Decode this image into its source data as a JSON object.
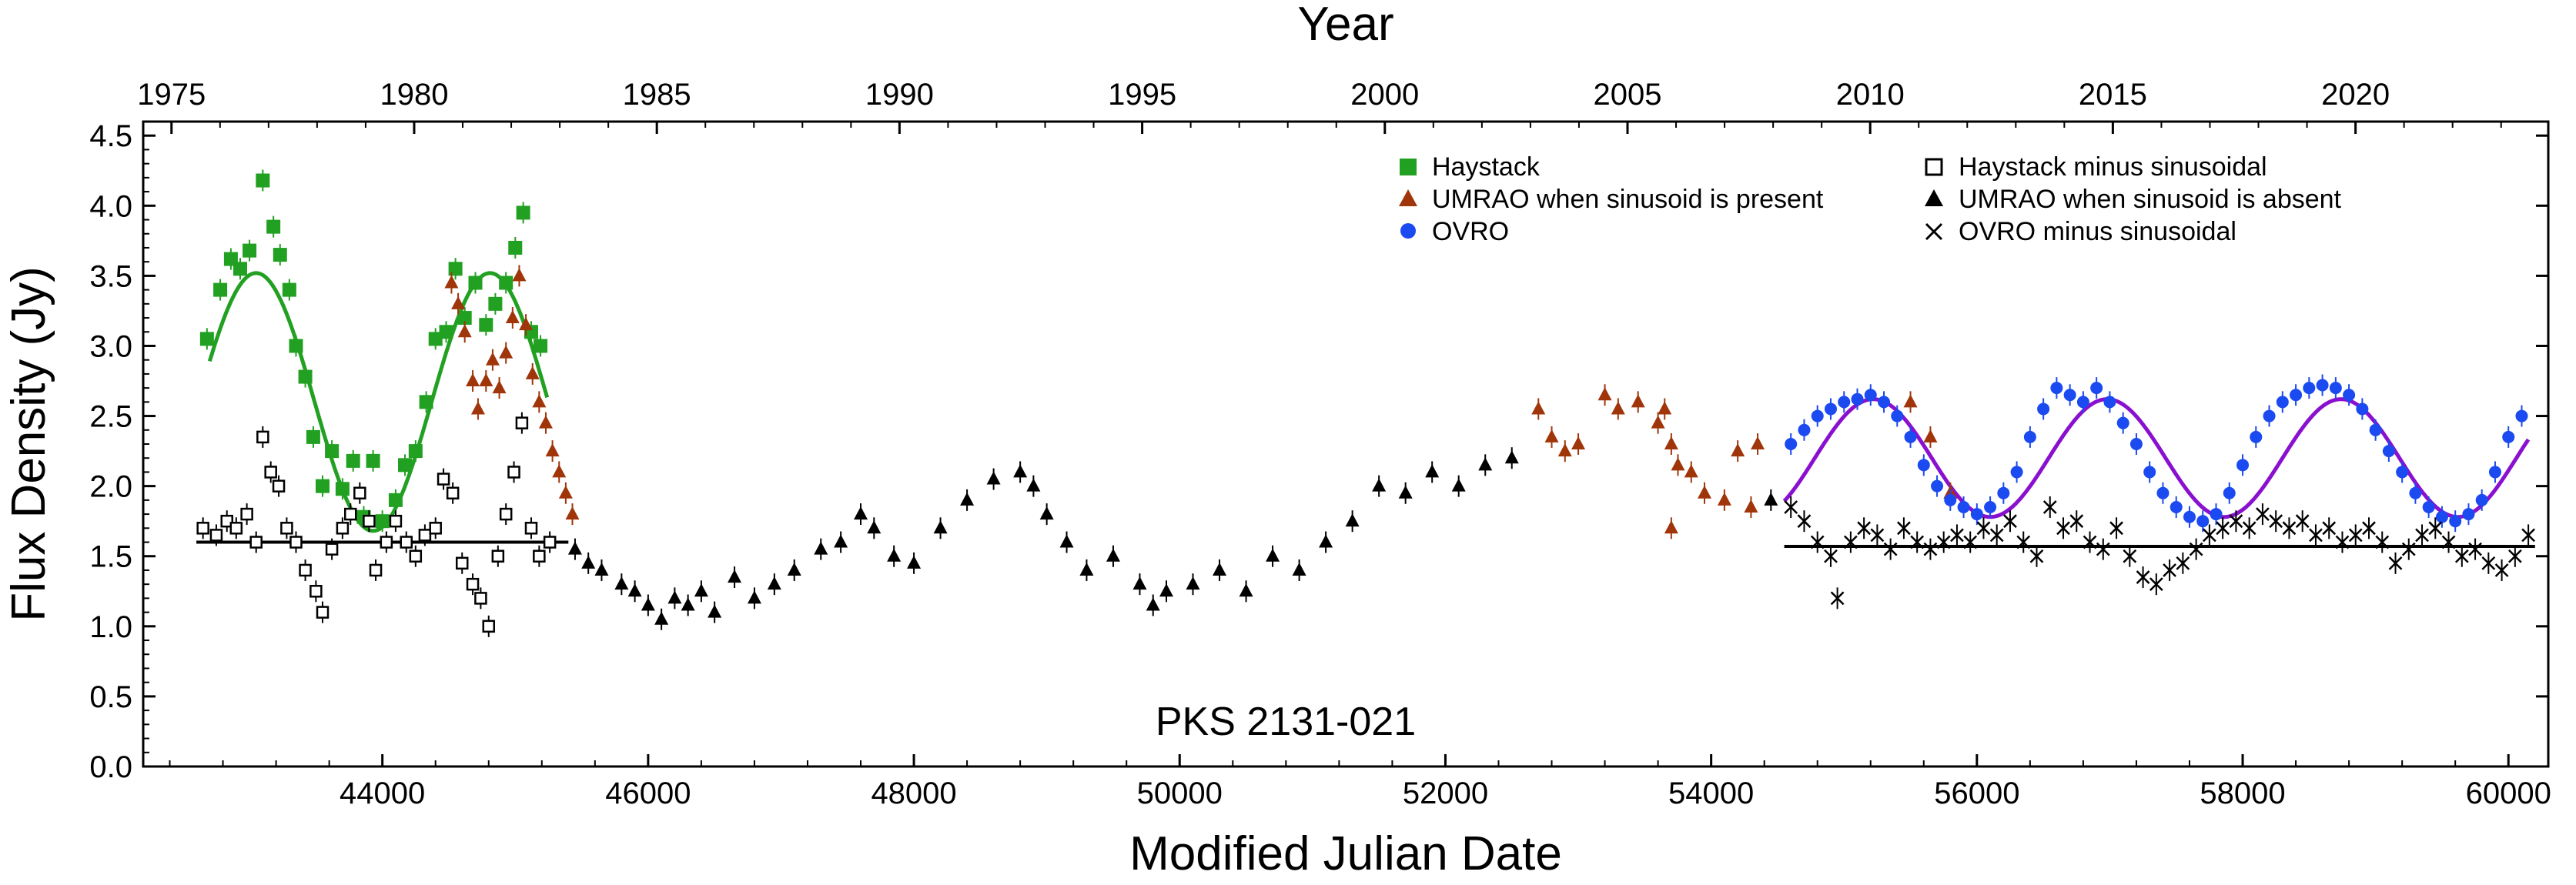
{
  "chart_data": {
    "type": "scatter",
    "title": "",
    "xlabel": "Modified Julian Date",
    "ylabel": "Flux Density (Jy)",
    "top_xlabel": "Year",
    "annotation": "PKS 2131-021",
    "xlim": [
      42200,
      60300
    ],
    "ylim": [
      0,
      4.6
    ],
    "x_ticks": [
      "44000",
      "46000",
      "48000",
      "50000",
      "52000",
      "54000",
      "56000",
      "58000",
      "60000"
    ],
    "y_ticks": [
      "0.0",
      "0.5",
      "1.0",
      "1.5",
      "2.0",
      "2.5",
      "3.0",
      "3.5",
      "4.0",
      "4.5"
    ],
    "top_ticks": [
      "1975",
      "1980",
      "1985",
      "1990",
      "1995",
      "2000",
      "2005",
      "2010",
      "2015",
      "2020"
    ],
    "legend": [
      "Haystack",
      "UMRAO when sinusoid is present",
      "OVRO",
      "Haystack minus sinusoidal",
      "UMRAO when sinusoid is absent",
      "OVRO minus sinusoidal"
    ],
    "colors": {
      "haystack": "#22a022",
      "umrao_present": "#a0350a",
      "ovro": "#1a4af0",
      "fit_haystack": "#22a022",
      "fit_ovro": "#8a10d0",
      "black": "#000000"
    },
    "series": [
      {
        "name": "Haystack",
        "marker": "square-filled",
        "points": [
          [
            42680,
            3.05
          ],
          [
            42780,
            3.4
          ],
          [
            42860,
            3.62
          ],
          [
            42930,
            3.55
          ],
          [
            43000,
            3.68
          ],
          [
            43100,
            4.18
          ],
          [
            43180,
            3.85
          ],
          [
            43230,
            3.65
          ],
          [
            43300,
            3.4
          ],
          [
            43350,
            3.0
          ],
          [
            43420,
            2.78
          ],
          [
            43480,
            2.35
          ],
          [
            43550,
            2.0
          ],
          [
            43620,
            2.25
          ],
          [
            43700,
            1.98
          ],
          [
            43780,
            2.18
          ],
          [
            43860,
            1.78
          ],
          [
            43930,
            2.18
          ],
          [
            44000,
            1.75
          ],
          [
            44100,
            1.9
          ],
          [
            44170,
            2.15
          ],
          [
            44250,
            2.25
          ],
          [
            44330,
            2.6
          ],
          [
            44400,
            3.05
          ],
          [
            44480,
            3.1
          ],
          [
            44550,
            3.55
          ],
          [
            44620,
            3.2
          ],
          [
            44700,
            3.45
          ],
          [
            44780,
            3.15
          ],
          [
            44850,
            3.3
          ],
          [
            44930,
            3.45
          ],
          [
            45000,
            3.7
          ],
          [
            45060,
            3.95
          ],
          [
            45120,
            3.1
          ],
          [
            45190,
            3.0
          ]
        ]
      },
      {
        "name": "UMRAO when sinusoid is present",
        "marker": "triangle-filled",
        "points": [
          [
            44520,
            3.45
          ],
          [
            44570,
            3.3
          ],
          [
            44620,
            3.1
          ],
          [
            44680,
            2.75
          ],
          [
            44720,
            2.55
          ],
          [
            44780,
            2.75
          ],
          [
            44830,
            2.9
          ],
          [
            44880,
            2.7
          ],
          [
            44930,
            2.95
          ],
          [
            44980,
            3.2
          ],
          [
            45030,
            3.5
          ],
          [
            45080,
            3.15
          ],
          [
            45130,
            2.8
          ],
          [
            45180,
            2.6
          ],
          [
            45230,
            2.45
          ],
          [
            45280,
            2.25
          ],
          [
            45330,
            2.1
          ],
          [
            45380,
            1.95
          ],
          [
            45430,
            1.8
          ],
          [
            52700,
            2.55
          ],
          [
            52800,
            2.35
          ],
          [
            52900,
            2.25
          ],
          [
            53000,
            2.3
          ],
          [
            53200,
            2.65
          ],
          [
            53300,
            2.55
          ],
          [
            53450,
            2.6
          ],
          [
            53600,
            2.45
          ],
          [
            53650,
            2.55
          ],
          [
            53700,
            2.3
          ],
          [
            53750,
            2.15
          ],
          [
            53700,
            1.7
          ],
          [
            53850,
            2.1
          ],
          [
            53950,
            1.95
          ],
          [
            54100,
            1.9
          ],
          [
            54200,
            2.25
          ],
          [
            54300,
            1.85
          ],
          [
            54350,
            2.3
          ],
          [
            55500,
            2.6
          ],
          [
            55650,
            2.35
          ],
          [
            55800,
            1.95
          ]
        ]
      },
      {
        "name": "OVRO",
        "marker": "circle-filled",
        "points": [
          [
            54600,
            2.3
          ],
          [
            54700,
            2.4
          ],
          [
            54800,
            2.5
          ],
          [
            54900,
            2.55
          ],
          [
            55000,
            2.6
          ],
          [
            55100,
            2.62
          ],
          [
            55200,
            2.65
          ],
          [
            55300,
            2.6
          ],
          [
            55400,
            2.5
          ],
          [
            55500,
            2.35
          ],
          [
            55600,
            2.15
          ],
          [
            55700,
            2.0
          ],
          [
            55800,
            1.9
          ],
          [
            55900,
            1.85
          ],
          [
            56000,
            1.8
          ],
          [
            56100,
            1.85
          ],
          [
            56200,
            1.95
          ],
          [
            56300,
            2.1
          ],
          [
            56400,
            2.35
          ],
          [
            56500,
            2.55
          ],
          [
            56600,
            2.7
          ],
          [
            56700,
            2.65
          ],
          [
            56800,
            2.6
          ],
          [
            56900,
            2.7
          ],
          [
            57000,
            2.6
          ],
          [
            57100,
            2.45
          ],
          [
            57200,
            2.3
          ],
          [
            57300,
            2.1
          ],
          [
            57400,
            1.95
          ],
          [
            57500,
            1.85
          ],
          [
            57600,
            1.78
          ],
          [
            57700,
            1.75
          ],
          [
            57800,
            1.8
          ],
          [
            57900,
            1.95
          ],
          [
            58000,
            2.15
          ],
          [
            58100,
            2.35
          ],
          [
            58200,
            2.5
          ],
          [
            58300,
            2.6
          ],
          [
            58400,
            2.65
          ],
          [
            58500,
            2.7
          ],
          [
            58600,
            2.72
          ],
          [
            58700,
            2.7
          ],
          [
            58800,
            2.65
          ],
          [
            58900,
            2.55
          ],
          [
            59000,
            2.4
          ],
          [
            59100,
            2.25
          ],
          [
            59200,
            2.1
          ],
          [
            59300,
            1.95
          ],
          [
            59400,
            1.85
          ],
          [
            59500,
            1.78
          ],
          [
            59600,
            1.75
          ],
          [
            59700,
            1.8
          ],
          [
            59800,
            1.9
          ],
          [
            59900,
            2.1
          ],
          [
            60000,
            2.35
          ],
          [
            60100,
            2.5
          ]
        ]
      },
      {
        "name": "Haystack minus sinusoidal",
        "marker": "square-open",
        "points": [
          [
            42650,
            1.7
          ],
          [
            42750,
            1.65
          ],
          [
            42830,
            1.75
          ],
          [
            42900,
            1.7
          ],
          [
            42980,
            1.8
          ],
          [
            43050,
            1.6
          ],
          [
            43100,
            2.35
          ],
          [
            43160,
            2.1
          ],
          [
            43220,
            2.0
          ],
          [
            43280,
            1.7
          ],
          [
            43350,
            1.6
          ],
          [
            43420,
            1.4
          ],
          [
            43500,
            1.25
          ],
          [
            43550,
            1.1
          ],
          [
            43620,
            1.55
          ],
          [
            43700,
            1.7
          ],
          [
            43760,
            1.8
          ],
          [
            43830,
            1.95
          ],
          [
            43900,
            1.75
          ],
          [
            43950,
            1.4
          ],
          [
            44030,
            1.6
          ],
          [
            44100,
            1.75
          ],
          [
            44180,
            1.6
          ],
          [
            44250,
            1.5
          ],
          [
            44320,
            1.65
          ],
          [
            44400,
            1.7
          ],
          [
            44460,
            2.05
          ],
          [
            44530,
            1.95
          ],
          [
            44600,
            1.45
          ],
          [
            44680,
            1.3
          ],
          [
            44740,
            1.2
          ],
          [
            44800,
            1.0
          ],
          [
            44870,
            1.5
          ],
          [
            44930,
            1.8
          ],
          [
            44990,
            2.1
          ],
          [
            45050,
            2.45
          ],
          [
            45120,
            1.7
          ],
          [
            45180,
            1.5
          ],
          [
            45260,
            1.6
          ]
        ]
      },
      {
        "name": "UMRAO when sinusoid is absent",
        "marker": "triangle-filled",
        "points": [
          [
            45450,
            1.55
          ],
          [
            45550,
            1.45
          ],
          [
            45650,
            1.4
          ],
          [
            45800,
            1.3
          ],
          [
            45900,
            1.25
          ],
          [
            46000,
            1.15
          ],
          [
            46100,
            1.05
          ],
          [
            46200,
            1.2
          ],
          [
            46300,
            1.15
          ],
          [
            46400,
            1.25
          ],
          [
            46500,
            1.1
          ],
          [
            46650,
            1.35
          ],
          [
            46800,
            1.2
          ],
          [
            46950,
            1.3
          ],
          [
            47100,
            1.4
          ],
          [
            47300,
            1.55
          ],
          [
            47450,
            1.6
          ],
          [
            47600,
            1.8
          ],
          [
            47700,
            1.7
          ],
          [
            47850,
            1.5
          ],
          [
            48000,
            1.45
          ],
          [
            48200,
            1.7
          ],
          [
            48400,
            1.9
          ],
          [
            48600,
            2.05
          ],
          [
            48800,
            2.1
          ],
          [
            48900,
            2.0
          ],
          [
            49000,
            1.8
          ],
          [
            49150,
            1.6
          ],
          [
            49300,
            1.4
          ],
          [
            49500,
            1.5
          ],
          [
            49700,
            1.3
          ],
          [
            49800,
            1.15
          ],
          [
            49900,
            1.25
          ],
          [
            50100,
            1.3
          ],
          [
            50300,
            1.4
          ],
          [
            50500,
            1.25
          ],
          [
            50700,
            1.5
          ],
          [
            50900,
            1.4
          ],
          [
            51100,
            1.6
          ],
          [
            51300,
            1.75
          ],
          [
            51500,
            2.0
          ],
          [
            51700,
            1.95
          ],
          [
            51900,
            2.1
          ],
          [
            52100,
            2.0
          ],
          [
            52300,
            2.15
          ],
          [
            52500,
            2.2
          ],
          [
            54450,
            1.9
          ]
        ]
      },
      {
        "name": "OVRO minus sinusoidal",
        "marker": "cross",
        "points": [
          [
            54600,
            1.85
          ],
          [
            54700,
            1.75
          ],
          [
            54800,
            1.6
          ],
          [
            54900,
            1.5
          ],
          [
            54950,
            1.2
          ],
          [
            55050,
            1.6
          ],
          [
            55150,
            1.7
          ],
          [
            55250,
            1.65
          ],
          [
            55350,
            1.55
          ],
          [
            55450,
            1.7
          ],
          [
            55550,
            1.6
          ],
          [
            55650,
            1.55
          ],
          [
            55750,
            1.6
          ],
          [
            55850,
            1.65
          ],
          [
            55950,
            1.6
          ],
          [
            56050,
            1.7
          ],
          [
            56150,
            1.65
          ],
          [
            56250,
            1.75
          ],
          [
            56350,
            1.6
          ],
          [
            56450,
            1.5
          ],
          [
            56550,
            1.85
          ],
          [
            56650,
            1.7
          ],
          [
            56750,
            1.75
          ],
          [
            56850,
            1.6
          ],
          [
            56950,
            1.55
          ],
          [
            57050,
            1.7
          ],
          [
            57150,
            1.5
          ],
          [
            57250,
            1.35
          ],
          [
            57350,
            1.3
          ],
          [
            57450,
            1.4
          ],
          [
            57550,
            1.45
          ],
          [
            57650,
            1.55
          ],
          [
            57750,
            1.65
          ],
          [
            57850,
            1.7
          ],
          [
            57950,
            1.75
          ],
          [
            58050,
            1.7
          ],
          [
            58150,
            1.8
          ],
          [
            58250,
            1.75
          ],
          [
            58350,
            1.7
          ],
          [
            58450,
            1.75
          ],
          [
            58550,
            1.65
          ],
          [
            58650,
            1.7
          ],
          [
            58750,
            1.6
          ],
          [
            58850,
            1.65
          ],
          [
            58950,
            1.7
          ],
          [
            59050,
            1.6
          ],
          [
            59150,
            1.45
          ],
          [
            59250,
            1.55
          ],
          [
            59350,
            1.65
          ],
          [
            59450,
            1.7
          ],
          [
            59550,
            1.6
          ],
          [
            59650,
            1.5
          ],
          [
            59750,
            1.55
          ],
          [
            59850,
            1.45
          ],
          [
            59950,
            1.4
          ],
          [
            60050,
            1.5
          ],
          [
            60150,
            1.65
          ]
        ]
      }
    ],
    "lines": [
      {
        "name": "Haystack sinusoid fit",
        "color": "#22a022",
        "x_range": [
          42700,
          45250
        ],
        "mean": 2.6,
        "amplitude": 0.92,
        "period_days": 1760,
        "peak_mjd": 43050
      },
      {
        "name": "OVRO sinusoid fit",
        "color": "#8a10d0",
        "x_range": [
          54550,
          60150
        ],
        "mean": 2.2,
        "amplitude": 0.42,
        "period_days": 1760,
        "peak_mjd": 55220
      },
      {
        "name": "Haystack baseline",
        "color": "#000000",
        "x_range": [
          42600,
          45400
        ],
        "y": 1.6
      },
      {
        "name": "OVRO baseline",
        "color": "#000000",
        "x_range": [
          54550,
          60200
        ],
        "y": 1.57
      }
    ]
  }
}
